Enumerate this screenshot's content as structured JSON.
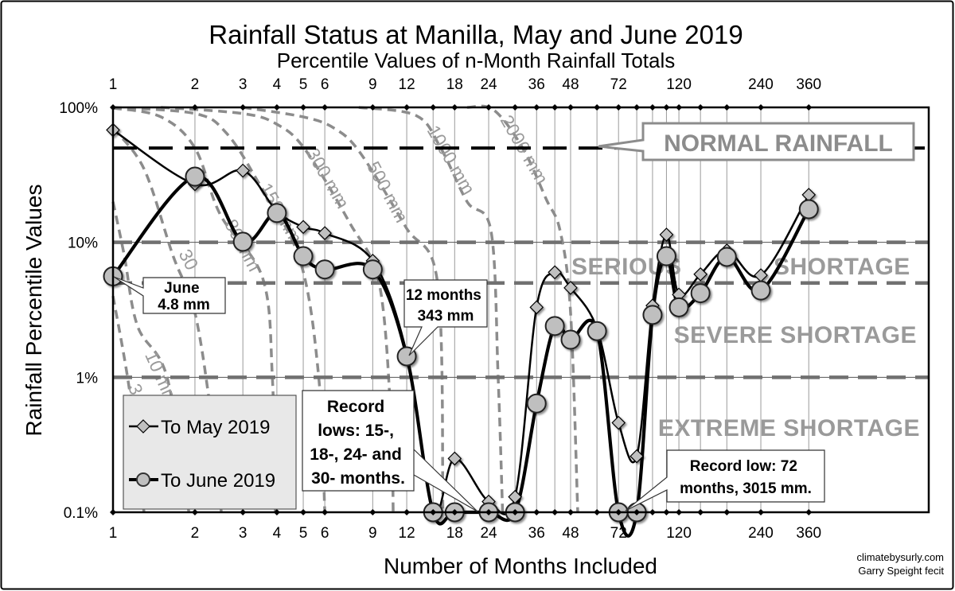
{
  "chart_data": {
    "type": "line",
    "title": "Rainfall Status at Manilla, May and June 2019",
    "subtitle": "Percentile Values of n-Month Rainfall Totals",
    "xlabel": "Number of Months Included",
    "ylabel": "Rainfall Percentile Values",
    "x_scale": "log",
    "y_scale": "log",
    "xlim": [
      1,
      1000
    ],
    "ylim": [
      0.1,
      100
    ],
    "x_tick_labels": [
      "1",
      "2",
      "3",
      "4",
      "5",
      "6",
      "9",
      "12",
      "18",
      "24",
      "36",
      "48",
      "72",
      "120",
      "240",
      "360"
    ],
    "x_ticks": [
      1,
      2,
      3,
      4,
      5,
      6,
      9,
      12,
      18,
      24,
      36,
      48,
      72,
      120,
      240,
      360
    ],
    "y_ticks": [
      100,
      10,
      1,
      0.1
    ],
    "y_tick_labels": [
      "100%",
      "10%",
      "1%",
      "0.1%"
    ],
    "x": [
      1,
      2,
      3,
      4,
      5,
      6,
      9,
      12,
      15,
      18,
      24,
      30,
      36,
      42,
      48,
      60,
      72,
      84,
      96,
      108,
      120,
      144,
      180,
      240,
      360
    ],
    "series": [
      {
        "name": "To May 2019",
        "marker": "diamond",
        "color": "#c0c0c0",
        "values": [
          68,
          27,
          34,
          17,
          13,
          11.7,
          7.3,
          1.5,
          0.1,
          0.25,
          0.12,
          0.13,
          3.3,
          6,
          4.6,
          2.3,
          0.46,
          0.26,
          3.4,
          11.4,
          4.1,
          5.8,
          8.7,
          5.7,
          22.5
        ]
      },
      {
        "name": "To June 2019",
        "marker": "circle",
        "color": "#bfbfbf",
        "values": [
          5.6,
          30.7,
          10.1,
          16.5,
          7.9,
          6.3,
          6.3,
          1.43,
          0.1,
          0.1,
          0.1,
          0.1,
          0.64,
          2.4,
          1.9,
          2.2,
          0.1,
          0.1,
          2.9,
          7.9,
          3.3,
          4.2,
          7.8,
          4.4,
          17.6
        ]
      }
    ],
    "reference_lines": [
      {
        "value": 50,
        "style": "black-dashed"
      },
      {
        "value": 10,
        "style": "gray-dashed"
      },
      {
        "value": 5,
        "style": "gray-dashed"
      },
      {
        "value": 1,
        "style": "gray-dashed"
      }
    ],
    "bands": {
      "normal": "NORMAL RAINFALL",
      "serious_1": "SERIOUS",
      "serious_2": "SHORTAGE",
      "severe": "SEVERE SHORTAGE",
      "extreme": "EXTREME SHORTAGE"
    },
    "contours": [
      {
        "label": "3",
        "points": [
          [
            1,
            4
          ],
          [
            1.15,
            0.8
          ],
          [
            1.3,
            0.1
          ]
        ]
      },
      {
        "label": "10 mm",
        "points": [
          [
            1,
            20
          ],
          [
            1.1,
            8
          ],
          [
            1.23,
            2.4
          ],
          [
            1.58,
            1
          ],
          [
            1.9,
            0.1
          ]
        ]
      },
      {
        "label": "30",
        "points": [
          [
            1,
            70
          ],
          [
            1.3,
            35
          ],
          [
            1.66,
            8
          ],
          [
            2,
            3
          ],
          [
            2.3,
            0.5
          ],
          [
            2.5,
            0.1
          ]
        ]
      },
      {
        "label": "80 mm",
        "points": [
          [
            1,
            99
          ],
          [
            1.5,
            85
          ],
          [
            2,
            50
          ],
          [
            2.48,
            16
          ],
          [
            3.55,
            5.4
          ],
          [
            3.85,
            1
          ],
          [
            3.95,
            0.1
          ]
        ]
      },
      {
        "label": "150 mm",
        "points": [
          [
            1,
            100
          ],
          [
            2,
            90
          ],
          [
            2.6,
            65
          ],
          [
            3.38,
            29
          ],
          [
            4.86,
            7.4
          ],
          [
            5.7,
            1
          ],
          [
            6,
            0.1
          ]
        ]
      },
      {
        "label": "300 mm",
        "points": [
          [
            1.5,
            100
          ],
          [
            3,
            90
          ],
          [
            4,
            75
          ],
          [
            5.07,
            49
          ],
          [
            7.4,
            14
          ],
          [
            9.5,
            5
          ],
          [
            10.5,
            0.5
          ],
          [
            10.7,
            0.1
          ]
        ]
      },
      {
        "label": "500 mm",
        "points": [
          [
            3,
            100
          ],
          [
            5,
            85
          ],
          [
            6.5,
            70
          ],
          [
            8.1,
            46
          ],
          [
            11.9,
            13
          ],
          [
            15.6,
            4.9
          ],
          [
            16.3,
            0.1
          ]
        ]
      },
      {
        "label": "1000 mm",
        "points": [
          [
            8,
            100
          ],
          [
            13,
            87
          ],
          [
            16,
            50
          ],
          [
            20,
            20
          ],
          [
            24.5,
            12
          ],
          [
            26,
            1
          ],
          [
            27,
            0.1
          ]
        ]
      },
      {
        "label": "2000 mm",
        "points": [
          [
            20,
            100
          ],
          [
            25,
            96
          ],
          [
            32,
            50
          ],
          [
            39,
            21
          ],
          [
            44,
            12
          ],
          [
            48,
            3
          ],
          [
            51,
            0.1
          ]
        ]
      }
    ],
    "legend": {
      "placement": "bottom-left",
      "items": [
        "To May 2019",
        "To June 2019"
      ]
    },
    "annotations": {
      "june": [
        "June",
        "4.8 mm"
      ],
      "twelve": [
        "12 months",
        "343 mm"
      ],
      "record_lows": [
        "Record",
        "lows: 15-,",
        "18-, 24- and",
        "30- months."
      ],
      "record_low72": [
        "Record low: 72",
        "months, 3015 mm."
      ]
    },
    "credit": [
      "climatebysurly.com",
      "Garry Speight fecit"
    ]
  }
}
